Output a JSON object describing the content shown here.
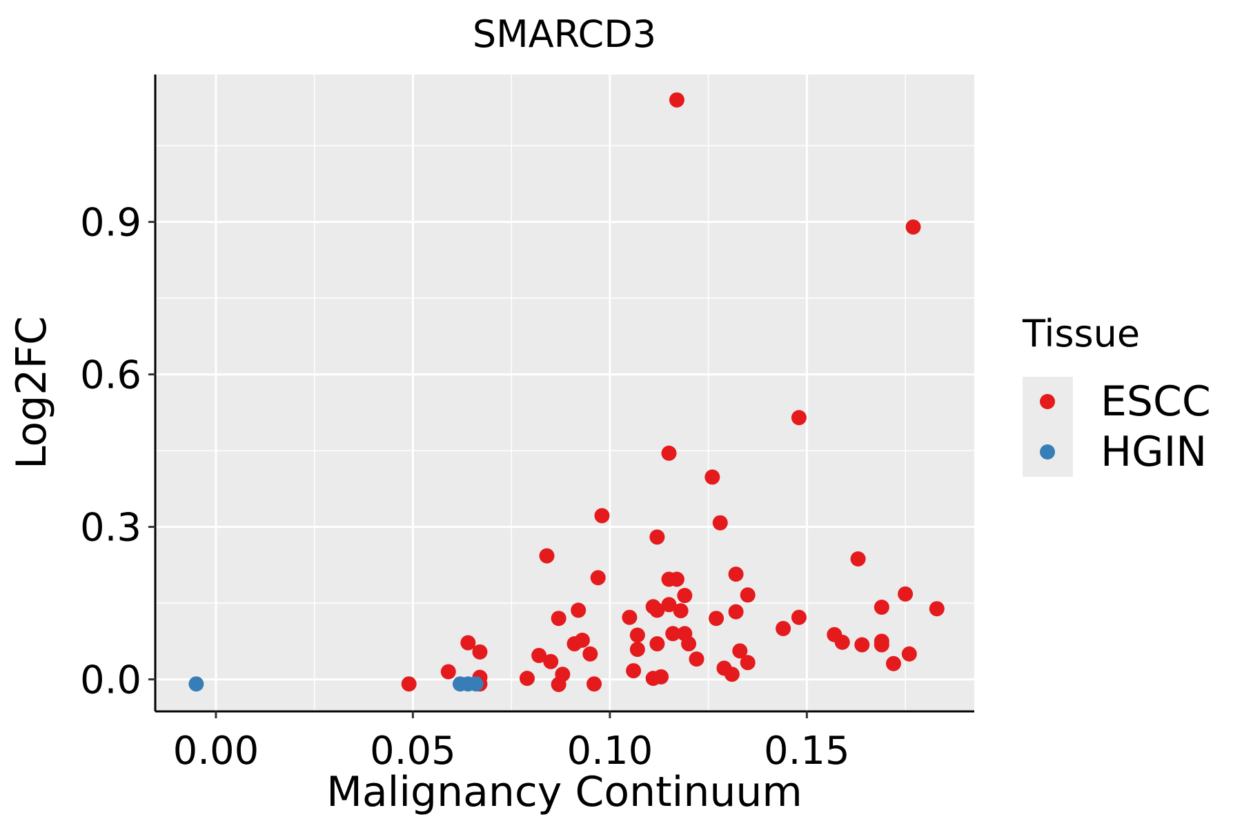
{
  "chart_data": {
    "type": "scatter",
    "title": "SMARCD3",
    "xlabel": "Malignancy Continuum",
    "ylabel": "Log2FC",
    "xlim": [
      -0.0154,
      0.1925
    ],
    "ylim": [
      -0.063,
      1.19
    ],
    "x_ticks": [
      {
        "value": 0.0,
        "label": "0.00"
      },
      {
        "value": 0.05,
        "label": "0.05"
      },
      {
        "value": 0.1,
        "label": "0.10"
      },
      {
        "value": 0.15,
        "label": "0.15"
      }
    ],
    "y_ticks": [
      {
        "value": 0.0,
        "label": "0.0"
      },
      {
        "value": 0.3,
        "label": "0.3"
      },
      {
        "value": 0.6,
        "label": "0.6"
      },
      {
        "value": 0.9,
        "label": "0.9"
      }
    ],
    "x_minor": [
      0.025,
      0.075,
      0.125,
      0.175
    ],
    "y_minor": [
      0.15,
      0.45,
      0.75,
      1.05
    ],
    "grid": true,
    "legend": {
      "title": "Tissue",
      "position": "right",
      "entries": [
        {
          "label": "ESCC",
          "color": "#E41A1C"
        },
        {
          "label": "HGIN",
          "color": "#377EB8"
        }
      ]
    },
    "series": [
      {
        "name": "ESCC",
        "color": "#E41A1C",
        "points": [
          [
            0.117,
            1.14
          ],
          [
            0.177,
            0.89
          ],
          [
            0.148,
            0.515
          ],
          [
            0.115,
            0.445
          ],
          [
            0.126,
            0.398
          ],
          [
            0.098,
            0.322
          ],
          [
            0.128,
            0.308
          ],
          [
            0.112,
            0.28
          ],
          [
            0.084,
            0.243
          ],
          [
            0.163,
            0.237
          ],
          [
            0.132,
            0.207
          ],
          [
            0.097,
            0.2
          ],
          [
            0.115,
            0.197
          ],
          [
            0.117,
            0.197
          ],
          [
            0.119,
            0.165
          ],
          [
            0.135,
            0.166
          ],
          [
            0.175,
            0.168
          ],
          [
            0.111,
            0.143
          ],
          [
            0.115,
            0.147
          ],
          [
            0.183,
            0.139
          ],
          [
            0.112,
            0.136
          ],
          [
            0.118,
            0.135
          ],
          [
            0.092,
            0.136
          ],
          [
            0.132,
            0.133
          ],
          [
            0.169,
            0.142
          ],
          [
            0.105,
            0.122
          ],
          [
            0.127,
            0.12
          ],
          [
            0.087,
            0.12
          ],
          [
            0.148,
            0.122
          ],
          [
            0.144,
            0.1
          ],
          [
            0.107,
            0.087
          ],
          [
            0.116,
            0.09
          ],
          [
            0.119,
            0.09
          ],
          [
            0.157,
            0.088
          ],
          [
            0.159,
            0.073
          ],
          [
            0.164,
            0.068
          ],
          [
            0.169,
            0.075
          ],
          [
            0.169,
            0.068
          ],
          [
            0.091,
            0.07
          ],
          [
            0.093,
            0.077
          ],
          [
            0.112,
            0.07
          ],
          [
            0.12,
            0.07
          ],
          [
            0.064,
            0.072
          ],
          [
            0.067,
            0.054
          ],
          [
            0.107,
            0.059
          ],
          [
            0.133,
            0.056
          ],
          [
            0.095,
            0.05
          ],
          [
            0.176,
            0.05
          ],
          [
            0.082,
            0.047
          ],
          [
            0.085,
            0.035
          ],
          [
            0.122,
            0.04
          ],
          [
            0.135,
            0.033
          ],
          [
            0.172,
            0.031
          ],
          [
            0.129,
            0.022
          ],
          [
            0.106,
            0.017
          ],
          [
            0.131,
            0.01
          ],
          [
            0.059,
            0.015
          ],
          [
            0.088,
            0.01
          ],
          [
            0.067,
            0.004
          ],
          [
            0.079,
            0.002
          ],
          [
            0.111,
            0.002
          ],
          [
            0.113,
            0.005
          ],
          [
            0.049,
            -0.009
          ],
          [
            0.087,
            -0.01
          ],
          [
            0.096,
            -0.009
          ],
          [
            0.067,
            -0.009
          ]
        ]
      },
      {
        "name": "HGIN",
        "color": "#377EB8",
        "points": [
          [
            -0.005,
            -0.009
          ],
          [
            0.062,
            -0.009
          ],
          [
            0.064,
            -0.009
          ],
          [
            0.066,
            -0.009
          ]
        ]
      }
    ]
  }
}
